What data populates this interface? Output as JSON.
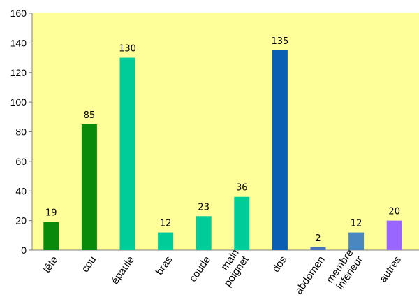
{
  "chart_data": {
    "type": "bar",
    "title": "",
    "xlabel": "",
    "ylabel": "",
    "ylim": [
      0,
      160
    ],
    "yticks": [
      0,
      20,
      40,
      60,
      80,
      100,
      120,
      140,
      160
    ],
    "grid": false,
    "legend": "none",
    "categories": [
      [
        "tête"
      ],
      [
        "cou"
      ],
      [
        "épaule"
      ],
      [
        "bras"
      ],
      [
        "coude"
      ],
      [
        "main",
        "poignet"
      ],
      [
        "dos"
      ],
      [
        "abdomen"
      ],
      [
        "membre",
        "inférieur"
      ],
      [
        "autres"
      ]
    ],
    "values": [
      19,
      85,
      130,
      12,
      23,
      36,
      135,
      2,
      12,
      20
    ],
    "data_labels": [
      "19",
      "85",
      "130",
      "12",
      "23",
      "36",
      "135",
      "2",
      "12",
      "20"
    ],
    "colors": [
      "#0a8a0a",
      "#0a8a0a",
      "#00cc99",
      "#00cc99",
      "#00cc99",
      "#00cc99",
      "#0a5fb4",
      "#4a74b8",
      "#4a86c0",
      "#9966ff"
    ],
    "plot_background": "#ffff99"
  }
}
